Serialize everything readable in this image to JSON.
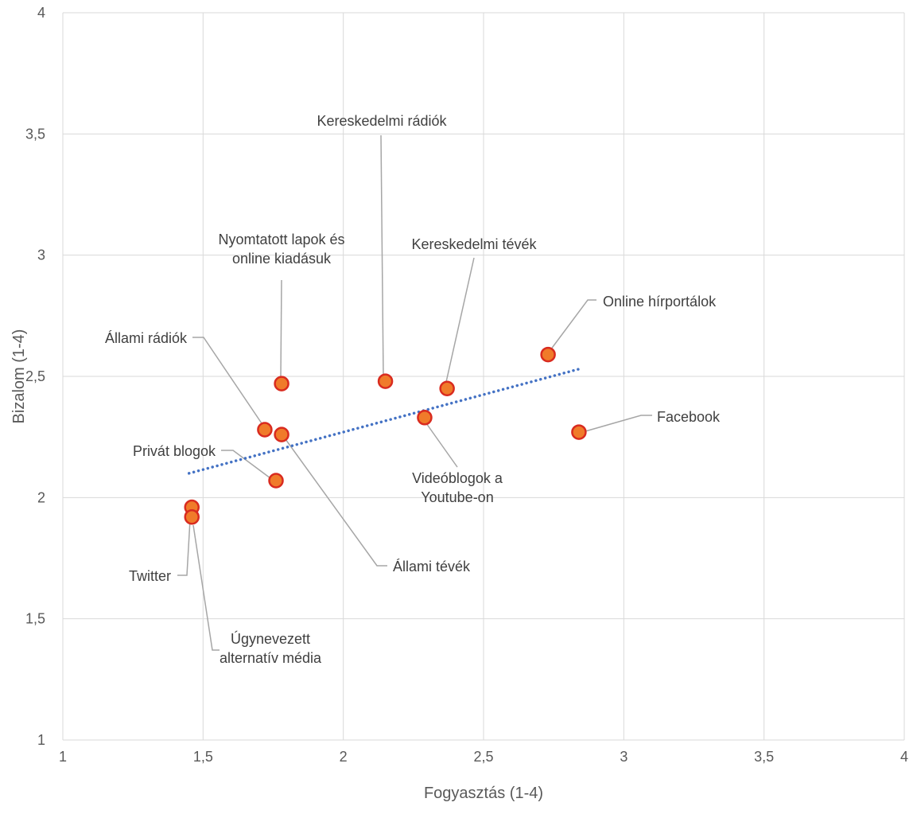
{
  "chart_data": {
    "type": "scatter",
    "title": "",
    "xlabel": "Fogyasztás (1-4)",
    "ylabel": "Bizalom (1-4)",
    "xlim": [
      1,
      4
    ],
    "ylim": [
      1,
      4
    ],
    "x_ticks": [
      "1",
      "1,5",
      "2",
      "2,5",
      "3",
      "3,5",
      "4"
    ],
    "y_ticks": [
      "1",
      "1,5",
      "2",
      "2,5",
      "3",
      "3,5",
      "4"
    ],
    "grid": true,
    "legend": "none",
    "colors": {
      "marker_fill": "#F07B2A",
      "marker_edge": "#D92B1F",
      "trendline": "#4472C4",
      "grid": "#D9D9D9",
      "leader": "#A6A6A6"
    },
    "points": [
      {
        "label": "Kereskedelmi rádiók",
        "x": 2.15,
        "y": 2.48
      },
      {
        "label": "Nyomtatott lapok és online kiadásuk",
        "x": 1.78,
        "y": 2.47
      },
      {
        "label": "Kereskedelmi tévék",
        "x": 2.37,
        "y": 2.45
      },
      {
        "label": "Online hírportálok",
        "x": 2.73,
        "y": 2.59
      },
      {
        "label": "Állami rádiók",
        "x": 1.72,
        "y": 2.28
      },
      {
        "label": "Facebook",
        "x": 2.84,
        "y": 2.27
      },
      {
        "label": "Videóblogok a Youtube-on",
        "x": 2.29,
        "y": 2.33
      },
      {
        "label": "Állami tévék",
        "x": 1.78,
        "y": 2.26
      },
      {
        "label": "Privát blogok",
        "x": 1.76,
        "y": 2.07
      },
      {
        "label": "Twitter",
        "x": 1.46,
        "y": 1.96
      },
      {
        "label": "Úgynevezett alternatív média",
        "x": 1.46,
        "y": 1.92
      }
    ],
    "trendline": {
      "type": "linear",
      "x": [
        1.45,
        2.84
      ],
      "y": [
        2.1,
        2.53
      ]
    }
  }
}
